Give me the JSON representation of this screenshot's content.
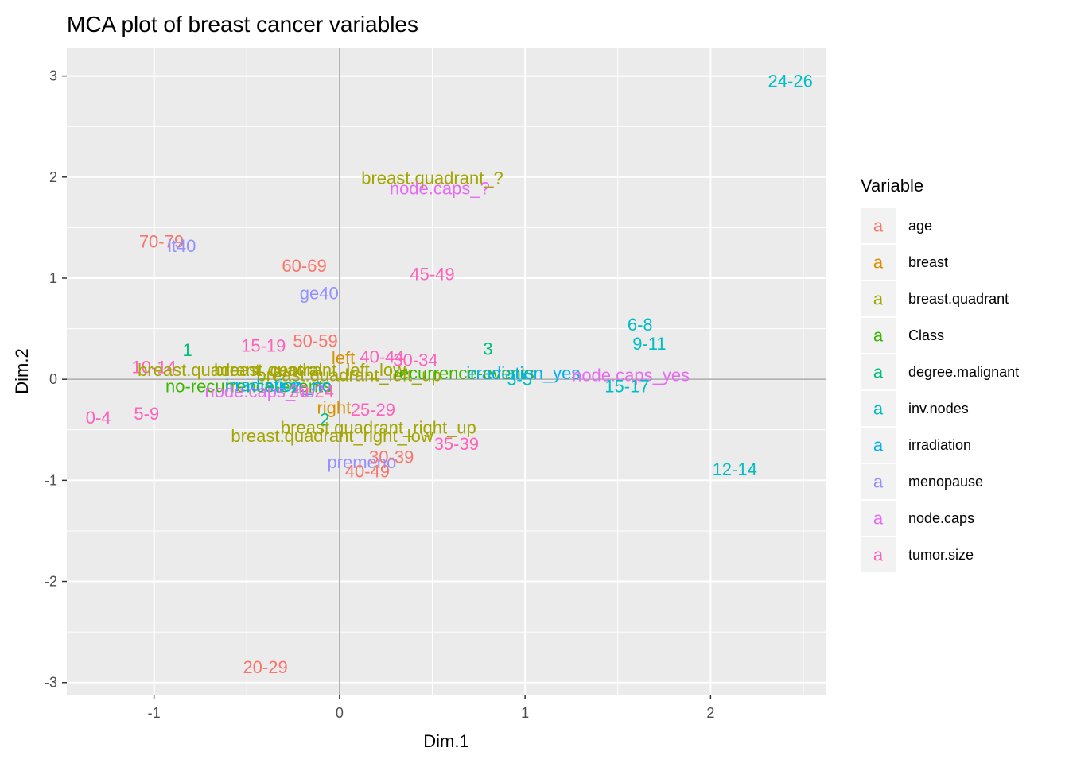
{
  "chart_data": {
    "type": "scatter",
    "title": "MCA plot of breast cancer variables",
    "xlabel": "Dim.1",
    "ylabel": "Dim.2",
    "xlim": [
      -1.47,
      2.62
    ],
    "ylim": [
      -3.12,
      3.28
    ],
    "x_ticks": [
      -1,
      0,
      1,
      2
    ],
    "y_ticks": [
      -3,
      -2,
      -1,
      0,
      1,
      2,
      3
    ],
    "grid": true,
    "reference_lines": {
      "x": 0,
      "y": 0
    },
    "legend": {
      "title": "Variable",
      "placement": "right",
      "key_glyph": "a",
      "entries": [
        {
          "name": "age",
          "color": "#F8766D"
        },
        {
          "name": "breast",
          "color": "#D89000"
        },
        {
          "name": "breast.quadrant",
          "color": "#A3A500"
        },
        {
          "name": "Class",
          "color": "#39B600"
        },
        {
          "name": "degree.malignant",
          "color": "#00BF7D"
        },
        {
          "name": "inv.nodes",
          "color": "#00BFC4"
        },
        {
          "name": "irradiation",
          "color": "#00B0F6"
        },
        {
          "name": "menopause",
          "color": "#9590FF"
        },
        {
          "name": "node.caps",
          "color": "#E76BF3"
        },
        {
          "name": "tumor.size",
          "color": "#FF62BC"
        }
      ]
    },
    "points": [
      {
        "label": "24-26",
        "variable": "inv.nodes",
        "x": 2.43,
        "y": 2.95
      },
      {
        "label": "breast.quadrant_?",
        "variable": "breast.quadrant",
        "x": 0.5,
        "y": 1.99
      },
      {
        "label": "node.caps_?",
        "variable": "node.caps",
        "x": 0.54,
        "y": 1.89
      },
      {
        "label": "70-79",
        "variable": "age",
        "x": -0.96,
        "y": 1.36
      },
      {
        "label": "lt40",
        "variable": "menopause",
        "x": -0.85,
        "y": 1.32
      },
      {
        "label": "60-69",
        "variable": "age",
        "x": -0.19,
        "y": 1.12
      },
      {
        "label": "45-49",
        "variable": "tumor.size",
        "x": 0.5,
        "y": 1.04
      },
      {
        "label": "ge40",
        "variable": "menopause",
        "x": -0.11,
        "y": 0.85
      },
      {
        "label": "6-8",
        "variable": "inv.nodes",
        "x": 1.62,
        "y": 0.54
      },
      {
        "label": "9-11",
        "variable": "inv.nodes",
        "x": 1.67,
        "y": 0.35
      },
      {
        "label": "50-59",
        "variable": "age",
        "x": -0.13,
        "y": 0.38
      },
      {
        "label": "15-19",
        "variable": "tumor.size",
        "x": -0.41,
        "y": 0.33
      },
      {
        "label": "1",
        "variable": "degree.malignant",
        "x": -0.82,
        "y": 0.29
      },
      {
        "label": "3",
        "variable": "degree.malignant",
        "x": 0.8,
        "y": 0.3
      },
      {
        "label": "left",
        "variable": "breast",
        "x": 0.02,
        "y": 0.21
      },
      {
        "label": "40-44",
        "variable": "tumor.size",
        "x": 0.23,
        "y": 0.22
      },
      {
        "label": "30-34",
        "variable": "tumor.size",
        "x": 0.41,
        "y": 0.19
      },
      {
        "label": "10-14",
        "variable": "tumor.size",
        "x": -1.0,
        "y": 0.12
      },
      {
        "label": "breast.quadrant_central",
        "variable": "breast.quadrant",
        "x": -0.59,
        "y": 0.09
      },
      {
        "label": "breast.quadrant_left_low",
        "variable": "breast.quadrant",
        "x": -0.16,
        "y": 0.09
      },
      {
        "label": "breast.quadrant_left_up",
        "variable": "breast.quadrant",
        "x": 0.05,
        "y": 0.04
      },
      {
        "label": "recurrence-events",
        "variable": "Class",
        "x": 0.67,
        "y": 0.06
      },
      {
        "label": "irradiation_yes",
        "variable": "irradiation",
        "x": 0.99,
        "y": 0.06
      },
      {
        "label": "node.caps_yes",
        "variable": "node.caps",
        "x": 1.57,
        "y": 0.04
      },
      {
        "label": "3-5",
        "variable": "inv.nodes",
        "x": 0.97,
        "y": 0.0
      },
      {
        "label": "15-17",
        "variable": "inv.nodes",
        "x": 1.55,
        "y": -0.07
      },
      {
        "label": "no-recurrence-events",
        "variable": "Class",
        "x": -0.49,
        "y": -0.07
      },
      {
        "label": "irradiation_no",
        "variable": "irradiation",
        "x": -0.33,
        "y": -0.06
      },
      {
        "label": "0-2",
        "variable": "inv.nodes",
        "x": -0.28,
        "y": -0.08
      },
      {
        "label": "node.caps_no",
        "variable": "node.caps",
        "x": -0.43,
        "y": -0.12
      },
      {
        "label": "20-24",
        "variable": "tumor.size",
        "x": -0.15,
        "y": -0.12
      },
      {
        "label": "right",
        "variable": "breast",
        "x": -0.03,
        "y": -0.28
      },
      {
        "label": "25-29",
        "variable": "tumor.size",
        "x": 0.18,
        "y": -0.3
      },
      {
        "label": "0-4",
        "variable": "tumor.size",
        "x": -1.3,
        "y": -0.38
      },
      {
        "label": "5-9",
        "variable": "tumor.size",
        "x": -1.04,
        "y": -0.34
      },
      {
        "label": "2",
        "variable": "degree.malignant",
        "x": -0.08,
        "y": -0.4
      },
      {
        "label": "breast.quadrant_right_up",
        "variable": "breast.quadrant",
        "x": 0.21,
        "y": -0.48
      },
      {
        "label": "breast.quadrant_right_low",
        "variable": "breast.quadrant",
        "x": -0.04,
        "y": -0.56
      },
      {
        "label": "35-39",
        "variable": "tumor.size",
        "x": 0.63,
        "y": -0.64
      },
      {
        "label": "30-39",
        "variable": "age",
        "x": 0.28,
        "y": -0.77
      },
      {
        "label": "premeno",
        "variable": "menopause",
        "x": 0.12,
        "y": -0.82
      },
      {
        "label": "40-49",
        "variable": "age",
        "x": 0.15,
        "y": -0.91
      },
      {
        "label": "12-14",
        "variable": "inv.nodes",
        "x": 2.13,
        "y": -0.89
      },
      {
        "label": "20-29",
        "variable": "age",
        "x": -0.4,
        "y": -2.85
      }
    ]
  }
}
